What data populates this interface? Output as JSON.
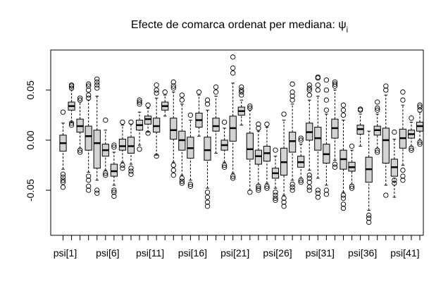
{
  "chart_data": {
    "type": "boxplot",
    "title": "Efecte de comarca ordenat per mediana:  ψ",
    "title_subscript": "i",
    "xlabel": "",
    "ylabel": "",
    "ylim": [
      -0.095,
      0.09
    ],
    "y_ticks": [
      -0.05,
      0.0,
      0.05
    ],
    "y_tick_labels": [
      "-0.05",
      "0.00",
      "0.05"
    ],
    "x_tick_labels": [
      {
        "index": 1,
        "label": "psi[1]"
      },
      {
        "index": 6,
        "label": "psi[6]"
      },
      {
        "index": 11,
        "label": "psi[11]"
      },
      {
        "index": 16,
        "label": "psi[16]"
      },
      {
        "index": 21,
        "label": "psi[21]"
      },
      {
        "index": 26,
        "label": "psi[26]"
      },
      {
        "index": 31,
        "label": "psi[31]"
      },
      {
        "index": 36,
        "label": "psi[36]"
      },
      {
        "index": 41,
        "label": "psi[41]"
      }
    ],
    "box_fill": "#d3d3d3",
    "boxes": [
      {
        "min": -0.029,
        "q1": -0.011,
        "median": -0.003,
        "q3": 0.005,
        "max": 0.017,
        "outliers": [
          0.028,
          -0.034,
          -0.037,
          -0.04,
          -0.042,
          -0.047
        ]
      },
      {
        "min": 0.018,
        "q1": 0.03,
        "median": 0.034,
        "q3": 0.038,
        "max": 0.05,
        "outliers": [
          0.052,
          0.054,
          0.055,
          0.017,
          0.015
        ]
      },
      {
        "min": -0.008,
        "q1": 0.008,
        "median": 0.014,
        "q3": 0.021,
        "max": 0.038,
        "outliers": [
          0.04,
          0.042,
          -0.01,
          -0.012
        ]
      },
      {
        "min": -0.032,
        "q1": -0.01,
        "median": 0.004,
        "q3": 0.014,
        "max": 0.04,
        "outliers": [
          0.042,
          0.045,
          0.05,
          0.054,
          0.056,
          -0.036,
          -0.04,
          -0.046,
          -0.05
        ]
      },
      {
        "min": -0.04,
        "q1": -0.028,
        "median": -0.003,
        "q3": 0.01,
        "max": 0.044,
        "outliers": [
          0.052,
          0.055,
          0.058,
          0.061,
          -0.05,
          -0.053
        ]
      },
      {
        "min": -0.03,
        "q1": -0.016,
        "median": -0.01,
        "q3": -0.004,
        "max": 0.01,
        "outliers": [
          0.02,
          -0.033,
          -0.035
        ]
      },
      {
        "min": -0.045,
        "q1": -0.036,
        "median": -0.031,
        "q3": -0.024,
        "max": -0.012,
        "outliers": [
          -0.007,
          -0.005,
          -0.05,
          -0.052,
          -0.056
        ]
      },
      {
        "min": -0.022,
        "q1": -0.01,
        "median": -0.006,
        "q3": 0.001,
        "max": 0.015,
        "outliers": [
          0.018,
          -0.025,
          -0.028
        ]
      },
      {
        "min": -0.024,
        "q1": -0.013,
        "median": -0.006,
        "q3": 0.003,
        "max": 0.016,
        "outliers": [
          0.018,
          -0.028,
          -0.031,
          -0.034
        ]
      },
      {
        "min": -0.005,
        "q1": 0.01,
        "median": 0.015,
        "q3": 0.02,
        "max": 0.028,
        "outliers": [
          0.036,
          0.038,
          0.04,
          -0.009
        ]
      },
      {
        "min": 0.008,
        "q1": 0.016,
        "median": 0.021,
        "q3": 0.024,
        "max": 0.032,
        "outliers": [
          0.035,
          0.007
        ]
      },
      {
        "min": -0.015,
        "q1": 0.008,
        "median": 0.014,
        "q3": 0.022,
        "max": 0.042,
        "outliers": [
          0.047,
          0.05,
          0.055,
          -0.016
        ]
      },
      {
        "min": 0.024,
        "q1": 0.03,
        "median": 0.034,
        "q3": 0.038,
        "max": 0.045,
        "outliers": [
          0.048
        ]
      },
      {
        "min": -0.022,
        "q1": 0.001,
        "median": 0.01,
        "q3": 0.022,
        "max": 0.048,
        "outliers": [
          0.052,
          0.054,
          0.058,
          -0.025,
          -0.03,
          -0.035
        ]
      },
      {
        "min": -0.035,
        "q1": -0.01,
        "median": 0.0,
        "q3": 0.009,
        "max": 0.036,
        "outliers": [
          0.04,
          0.045,
          -0.038,
          -0.041,
          -0.043
        ]
      },
      {
        "min": -0.04,
        "q1": -0.018,
        "median": -0.008,
        "q3": 0.003,
        "max": 0.02,
        "outliers": [
          0.025,
          -0.044,
          -0.046
        ]
      },
      {
        "min": 0.004,
        "q1": 0.013,
        "median": 0.02,
        "q3": 0.027,
        "max": 0.045,
        "outliers": [
          0.048
        ]
      },
      {
        "min": -0.048,
        "q1": -0.02,
        "median": -0.01,
        "q3": 0.003,
        "max": 0.03,
        "outliers": [
          0.036,
          0.04,
          -0.052,
          -0.057,
          -0.062,
          -0.066
        ]
      },
      {
        "min": -0.013,
        "q1": 0.009,
        "median": 0.014,
        "q3": 0.022,
        "max": 0.044,
        "outliers": [
          0.048,
          0.053
        ]
      },
      {
        "min": -0.022,
        "q1": -0.01,
        "median": -0.005,
        "q3": 0.0,
        "max": 0.012,
        "outliers": [
          0.018,
          -0.025,
          -0.027
        ]
      },
      {
        "min": -0.033,
        "q1": -0.001,
        "median": 0.012,
        "q3": 0.024,
        "max": 0.057,
        "outliers": [
          0.067,
          0.072,
          0.083,
          -0.036,
          -0.038
        ]
      },
      {
        "min": 0.015,
        "q1": 0.025,
        "median": 0.029,
        "q3": 0.033,
        "max": 0.04,
        "outliers": [
          0.045,
          0.048,
          0.05,
          0.053
        ]
      },
      {
        "min": -0.05,
        "q1": -0.019,
        "median": -0.009,
        "q3": 0.007,
        "max": 0.03,
        "outliers": [
          0.032,
          0.034,
          -0.052
        ]
      },
      {
        "min": -0.044,
        "q1": -0.024,
        "median": -0.016,
        "q3": -0.01,
        "max": 0.009,
        "outliers": [
          0.012,
          0.016,
          -0.046,
          -0.048,
          -0.05
        ]
      },
      {
        "min": -0.043,
        "q1": -0.021,
        "median": -0.013,
        "q3": -0.006,
        "max": 0.013,
        "outliers": [
          0.016,
          -0.046,
          -0.048
        ]
      },
      {
        "min": -0.048,
        "q1": -0.038,
        "median": -0.033,
        "q3": -0.028,
        "max": -0.016,
        "outliers": [
          -0.01,
          -0.052,
          -0.055,
          -0.058,
          -0.06
        ]
      },
      {
        "min": -0.055,
        "q1": -0.035,
        "median": -0.022,
        "q3": -0.008,
        "max": 0.02,
        "outliers": [
          0.026,
          -0.058,
          -0.062,
          -0.066
        ]
      },
      {
        "min": -0.04,
        "q1": -0.012,
        "median": -0.001,
        "q3": 0.008,
        "max": 0.036,
        "outliers": [
          0.04,
          0.044,
          0.048,
          0.056,
          -0.044,
          -0.047,
          -0.05
        ]
      },
      {
        "min": -0.038,
        "q1": -0.027,
        "median": -0.022,
        "q3": -0.016,
        "max": -0.004,
        "outliers": [
          0.0,
          0.002,
          -0.04,
          -0.042
        ]
      },
      {
        "min": -0.03,
        "q1": 0.0,
        "median": 0.008,
        "q3": 0.017,
        "max": 0.04,
        "outliers": [
          0.045,
          0.05,
          0.052,
          0.055,
          -0.035,
          -0.038,
          -0.042,
          -0.047,
          -0.05
        ]
      },
      {
        "min": -0.038,
        "q1": -0.01,
        "median": 0.002,
        "q3": 0.013,
        "max": 0.044,
        "outliers": [
          0.05,
          0.055,
          0.062,
          0.063,
          -0.05,
          -0.053,
          -0.057
        ]
      },
      {
        "min": -0.045,
        "q1": -0.023,
        "median": -0.014,
        "q3": -0.004,
        "max": 0.026,
        "outliers": [
          0.03,
          0.04,
          0.05,
          0.06,
          -0.05,
          -0.054
        ]
      },
      {
        "min": -0.02,
        "q1": 0.002,
        "median": 0.012,
        "q3": 0.021,
        "max": 0.05,
        "outliers": [
          0.054,
          0.056,
          0.058,
          -0.024,
          -0.027
        ]
      },
      {
        "min": -0.052,
        "q1": -0.029,
        "median": -0.019,
        "q3": -0.01,
        "max": 0.02,
        "outliers": [
          0.025,
          0.03,
          0.035,
          -0.055,
          -0.058,
          -0.064,
          -0.068
        ]
      },
      {
        "min": -0.044,
        "q1": -0.031,
        "median": -0.027,
        "q3": -0.022,
        "max": -0.01,
        "outliers": [
          -0.006,
          -0.046,
          -0.048
        ]
      },
      {
        "min": -0.006,
        "q1": 0.006,
        "median": 0.011,
        "q3": 0.015,
        "max": 0.026,
        "outliers": [
          0.03,
          0.031
        ]
      },
      {
        "min": -0.07,
        "q1": -0.042,
        "median": -0.029,
        "q3": -0.017,
        "max": 0.009,
        "outliers": [
          -0.075,
          -0.078,
          -0.082
        ]
      },
      {
        "min": -0.008,
        "q1": 0.005,
        "median": 0.01,
        "q3": 0.014,
        "max": 0.026,
        "outliers": [
          0.03,
          0.032,
          0.038,
          -0.01,
          -0.012
        ]
      },
      {
        "min": -0.045,
        "q1": -0.023,
        "median": 0.0,
        "q3": 0.012,
        "max": 0.045,
        "outliers": [
          0.05,
          0.054,
          -0.055
        ]
      },
      {
        "min": -0.057,
        "q1": -0.036,
        "median": -0.027,
        "q3": -0.019,
        "max": 0.001,
        "outliers": [
          0.008,
          -0.04,
          -0.043
        ]
      },
      {
        "min": -0.025,
        "q1": -0.008,
        "median": 0.002,
        "q3": 0.011,
        "max": 0.035,
        "outliers": [
          0.04,
          0.048,
          -0.03,
          -0.036,
          -0.04
        ]
      },
      {
        "min": -0.006,
        "q1": 0.002,
        "median": 0.006,
        "q3": 0.01,
        "max": 0.018,
        "outliers": [
          0.022,
          -0.008,
          -0.01
        ]
      },
      {
        "min": 0.0,
        "q1": 0.009,
        "median": 0.014,
        "q3": 0.018,
        "max": 0.028,
        "outliers": [
          0.03,
          0.033,
          0.035,
          -0.002,
          -0.004
        ]
      }
    ]
  }
}
